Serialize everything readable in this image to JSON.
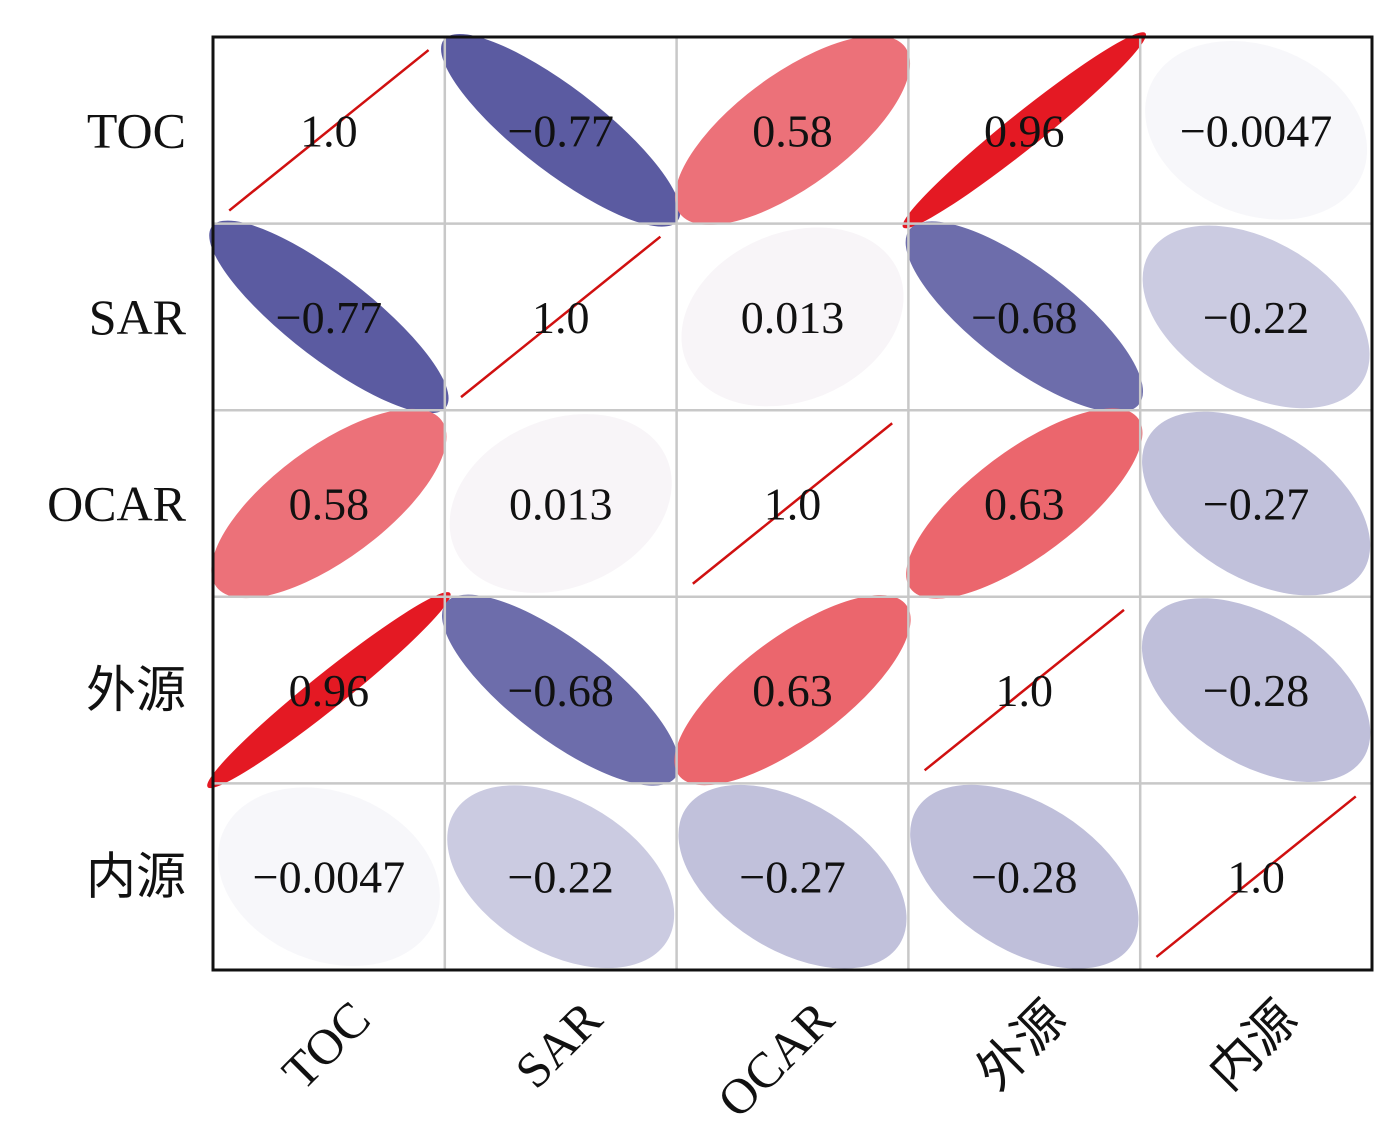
{
  "chart_data": {
    "type": "heatmap",
    "subtype": "ellipse-correlation-matrix",
    "title": "",
    "variables": [
      "TOC",
      "SAR",
      "OCAR",
      "外源",
      "内源"
    ],
    "matrix": [
      [
        1.0,
        -0.77,
        0.58,
        0.96,
        -0.0047
      ],
      [
        -0.77,
        1.0,
        0.013,
        -0.68,
        -0.22
      ],
      [
        0.58,
        0.013,
        1.0,
        0.63,
        -0.27
      ],
      [
        0.96,
        -0.68,
        0.63,
        1.0,
        -0.28
      ],
      [
        -0.0047,
        -0.22,
        -0.27,
        -0.28,
        1.0
      ]
    ],
    "labels": [
      [
        "1.0",
        "−0.77",
        "0.58",
        "0.96",
        "−0.0047"
      ],
      [
        "−0.77",
        "1.0",
        "0.013",
        "−0.68",
        "−0.22"
      ],
      [
        "0.58",
        "0.013",
        "1.0",
        "0.63",
        "−0.27"
      ],
      [
        "0.96",
        "−0.68",
        "0.63",
        "1.0",
        "−0.28"
      ],
      [
        "−0.0047",
        "−0.22",
        "−0.27",
        "−0.28",
        "1.0"
      ]
    ],
    "color_range": [
      -1,
      1
    ],
    "colors": {
      "positive": "#e3101a",
      "negative": "#2c2c86",
      "neutral": "#f8f8fb",
      "diagonal_line": "#d01010",
      "grid": "#c8c8c8",
      "border": "#111111"
    }
  }
}
